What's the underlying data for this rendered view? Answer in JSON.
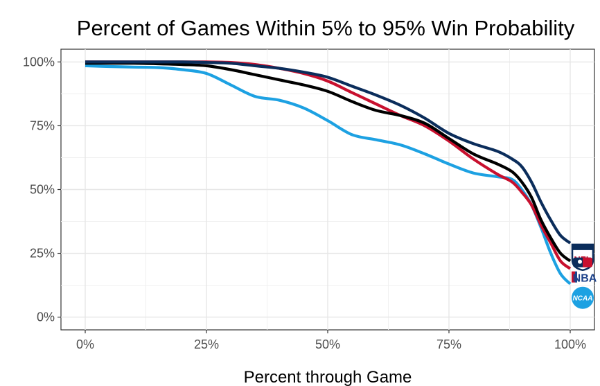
{
  "chart_data": {
    "type": "line",
    "title": "Percent of Games Within 5% to 95% Win Probability",
    "xlabel": "Percent through Game",
    "ylabel": "",
    "xlim": [
      -0.05,
      1.05
    ],
    "ylim": [
      -0.05,
      1.05
    ],
    "grid": true,
    "x_ticks": [
      0,
      0.25,
      0.5,
      0.75,
      1.0
    ],
    "x_tick_labels": [
      "0%",
      "25%",
      "50%",
      "75%",
      "100%"
    ],
    "y_ticks": [
      0,
      0.25,
      0.5,
      0.75,
      1.0
    ],
    "y_tick_labels": [
      "0%",
      "25%",
      "50%",
      "75%",
      "100%"
    ],
    "legend": "logos at line ends (right)",
    "series": [
      {
        "name": "NFL",
        "label": "NFL",
        "color": "#0b2d5b",
        "x": [
          0,
          0.05,
          0.1,
          0.15,
          0.2,
          0.25,
          0.3,
          0.35,
          0.4,
          0.45,
          0.5,
          0.55,
          0.6,
          0.65,
          0.7,
          0.75,
          0.8,
          0.85,
          0.88,
          0.9,
          0.92,
          0.94,
          0.96,
          0.98,
          1.0
        ],
        "values": [
          1.0,
          1.0,
          1.0,
          1.0,
          1.0,
          0.998,
          0.995,
          0.985,
          0.975,
          0.96,
          0.94,
          0.905,
          0.87,
          0.83,
          0.78,
          0.72,
          0.68,
          0.65,
          0.62,
          0.59,
          0.53,
          0.45,
          0.38,
          0.32,
          0.29
        ]
      },
      {
        "name": "MLB",
        "label": "MLB",
        "color": "#000000",
        "x": [
          0,
          0.05,
          0.1,
          0.15,
          0.2,
          0.25,
          0.3,
          0.35,
          0.4,
          0.45,
          0.5,
          0.55,
          0.6,
          0.65,
          0.7,
          0.75,
          0.8,
          0.85,
          0.88,
          0.9,
          0.92,
          0.94,
          0.96,
          0.98,
          1.0
        ],
        "values": [
          0.995,
          0.995,
          0.995,
          0.993,
          0.99,
          0.985,
          0.97,
          0.95,
          0.93,
          0.91,
          0.885,
          0.845,
          0.81,
          0.79,
          0.76,
          0.7,
          0.64,
          0.6,
          0.57,
          0.53,
          0.47,
          0.38,
          0.31,
          0.25,
          0.22
        ]
      },
      {
        "name": "NBA",
        "label": "NBA",
        "color": "#c8102e",
        "x": [
          0,
          0.05,
          0.1,
          0.15,
          0.2,
          0.25,
          0.3,
          0.35,
          0.4,
          0.45,
          0.5,
          0.55,
          0.6,
          0.65,
          0.7,
          0.75,
          0.8,
          0.85,
          0.88,
          0.9,
          0.92,
          0.94,
          0.96,
          0.98,
          1.0
        ],
        "values": [
          1.0,
          1.0,
          1.0,
          1.0,
          1.0,
          1.0,
          0.998,
          0.99,
          0.975,
          0.955,
          0.925,
          0.88,
          0.835,
          0.79,
          0.75,
          0.69,
          0.62,
          0.56,
          0.53,
          0.49,
          0.44,
          0.36,
          0.29,
          0.22,
          0.19
        ]
      },
      {
        "name": "NCAA",
        "label": "NCAA",
        "color": "#1da1e2",
        "x": [
          0,
          0.05,
          0.1,
          0.15,
          0.2,
          0.25,
          0.3,
          0.35,
          0.4,
          0.45,
          0.5,
          0.55,
          0.6,
          0.65,
          0.7,
          0.75,
          0.8,
          0.85,
          0.88,
          0.9,
          0.92,
          0.94,
          0.96,
          0.98,
          1.0
        ],
        "values": [
          0.985,
          0.982,
          0.98,
          0.978,
          0.97,
          0.955,
          0.91,
          0.865,
          0.85,
          0.82,
          0.77,
          0.715,
          0.695,
          0.675,
          0.64,
          0.6,
          0.565,
          0.55,
          0.54,
          0.5,
          0.44,
          0.35,
          0.25,
          0.17,
          0.13
        ]
      }
    ]
  }
}
